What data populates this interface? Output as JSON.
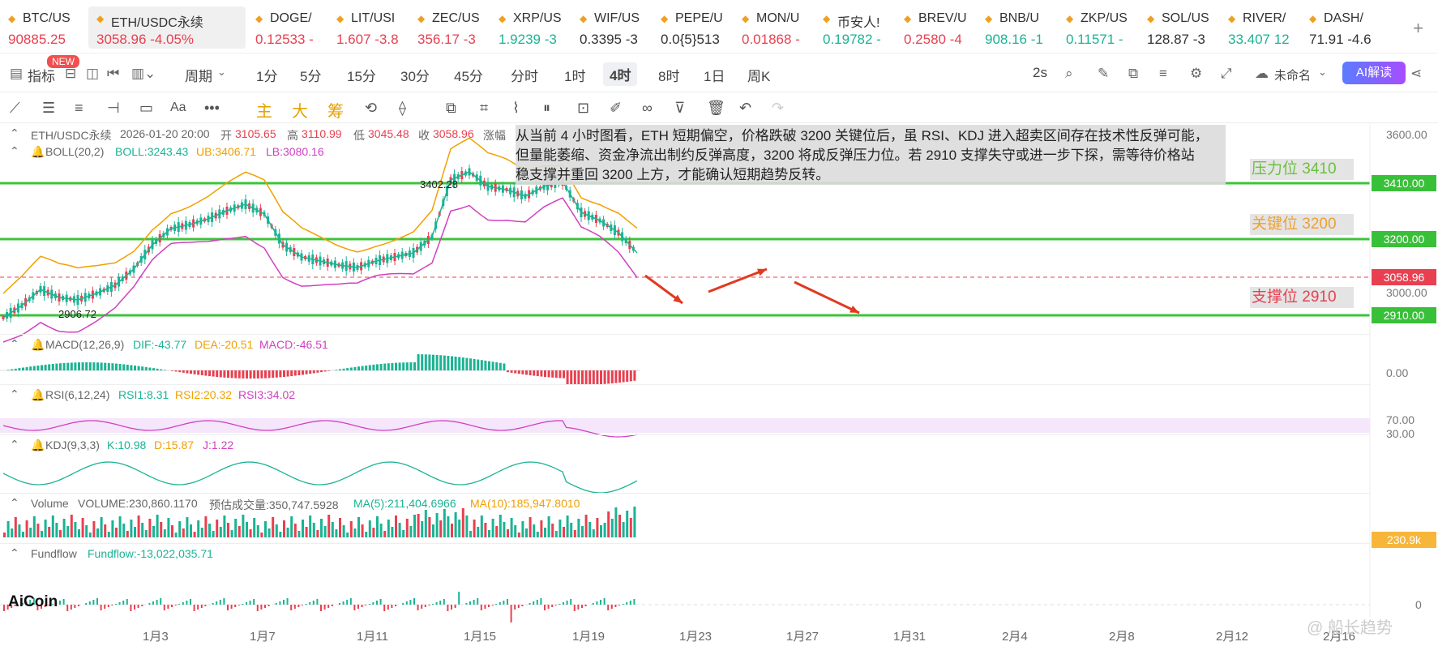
{
  "tickers": [
    {
      "name": "BTC/US",
      "value": "90885.25",
      "dir": "down",
      "x": 0,
      "w": 100
    },
    {
      "name": "ETH/USDC永续",
      "value": "3058.96  -4.05%",
      "dir": "down",
      "x": 109,
      "w": 194,
      "active": true
    },
    {
      "name": "DOGE/",
      "value": "0.12533  -",
      "dir": "down",
      "x": 305,
      "w": 100
    },
    {
      "name": "LIT/USI",
      "value": "1.607  -3.8",
      "dir": "down",
      "x": 405,
      "w": 100
    },
    {
      "name": "ZEC/US",
      "value": "356.17  -3",
      "dir": "down",
      "x": 505,
      "w": 100
    },
    {
      "name": "XRP/US",
      "value": "1.9239  -3",
      "dir": "up",
      "x": 605,
      "w": 100
    },
    {
      "name": "WIF/US",
      "value": "0.3395  -3",
      "dir": "plain",
      "x": 705,
      "w": 100
    },
    {
      "name": "PEPE/U",
      "value": "0.0{5}513",
      "dir": "plain",
      "x": 805,
      "w": 100
    },
    {
      "name": "MON/U",
      "value": "0.01868  -",
      "dir": "down",
      "x": 905,
      "w": 100
    },
    {
      "name": "币安人!",
      "value": "0.19782  -",
      "dir": "up",
      "x": 1005,
      "w": 100
    },
    {
      "name": "BREV/U",
      "value": "0.2580  -4",
      "dir": "down",
      "x": 1105,
      "w": 100
    },
    {
      "name": "BNB/U",
      "value": "908.16  -1",
      "dir": "up",
      "x": 1205,
      "w": 100
    },
    {
      "name": "ZKP/US",
      "value": "0.11571  -",
      "dir": "up",
      "x": 1305,
      "w": 100
    },
    {
      "name": "SOL/US",
      "value": "128.87  -3",
      "dir": "plain",
      "x": 1405,
      "w": 100
    },
    {
      "name": "RIVER/",
      "value": "33.407  12",
      "dir": "up",
      "x": 1505,
      "w": 100
    },
    {
      "name": "DASH/",
      "value": "71.91  -4.6",
      "dir": "plain",
      "x": 1605,
      "w": 100
    }
  ],
  "toolbar": {
    "indicator": "指标",
    "new_badge": "NEW",
    "period": "周期",
    "periods": [
      "1分",
      "5分",
      "15分",
      "30分",
      "45分",
      "分时",
      "1时",
      "4时",
      "8时",
      "1日",
      "周K"
    ],
    "selected_period": "4时",
    "refresh": "2s",
    "account": "未命名",
    "ai_btn": "AI解读"
  },
  "draw_tools": {
    "main": "主",
    "big": "大",
    "chip": "筹"
  },
  "legend": {
    "symbol": "ETH/USDC永续",
    "time": "2026-01-20 20:00",
    "open_l": "开",
    "open": "3105.65",
    "high_l": "高",
    "high": "3110.99",
    "low_l": "低",
    "low": "3045.48",
    "close_l": "收",
    "close": "3058.96",
    "chg_l": "涨幅"
  },
  "boll": {
    "name": "BOLL(20,2)",
    "boll": "BOLL:3243.43",
    "ub": "UB:3406.71",
    "lb": "LB:3080.16"
  },
  "macd": {
    "name": "MACD(12,26,9)",
    "dif": "DIF:-43.77",
    "dea": "DEA:-20.51",
    "macd": "MACD:-46.51"
  },
  "rsi": {
    "name": "RSI(6,12,24)",
    "r1": "RSI1:8.31",
    "r2": "RSI2:20.32",
    "r3": "RSI3:34.02"
  },
  "kdj": {
    "name": "KDJ(9,3,3)",
    "k": "K:10.98",
    "d": "D:15.87",
    "j": "J:1.22"
  },
  "volume": {
    "name": "Volume",
    "vol": "VOLUME:230,860.1170",
    "est": "预估成交量:350,747.5928",
    "ma5": "MA(5):211,404.6966",
    "ma10": "MA(10):185,947.8010"
  },
  "fundflow": {
    "name": "Fundflow",
    "val": "Fundflow:-13,022,035.71"
  },
  "note": {
    "line1": "从当前 4 小时图看，ETH 短期偏空，价格跌破 3200 关键位后，虽 RSI、KDJ 进入超卖区间存在技术性反弹可能，",
    "line2": "但量能萎缩、资金净流出制约反弹高度，3200 将成反弹压力位。若 2910 支撑失守或进一步下探，需等待价格站",
    "line3": "稳支撑并重回 3200 上方，才能确认短期趋势反转。"
  },
  "levels": {
    "resistance": "压力位 3410",
    "key": "关键位 3200",
    "support": "支撑位 2910"
  },
  "price_axis": {
    "p3600": "3600.00",
    "p3410": "3410.00",
    "p3200": "3200.00",
    "p3058": "3058.96",
    "p3000": "3000.00",
    "p2910": "2910.00",
    "macd0": "0.00",
    "rsi70": "70.00",
    "rsi30": "30.00",
    "vol": "230.9k",
    "ff0": "0"
  },
  "marks": {
    "high": "3402.28",
    "low": "2906.72"
  },
  "x_axis": [
    "1月3",
    "1月7",
    "1月11",
    "1月15",
    "1月19",
    "1月23",
    "1月27",
    "1月31",
    "2月4",
    "2月8",
    "2月12",
    "2月16"
  ],
  "logo": "AiCoin",
  "watermark": "@ 船长趋势"
}
